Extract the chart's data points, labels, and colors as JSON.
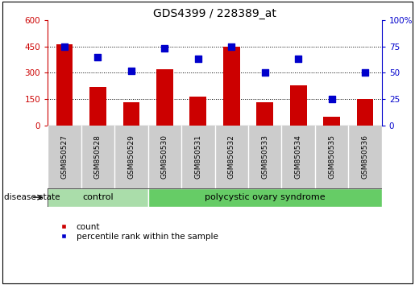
{
  "title": "GDS4399 / 228389_at",
  "samples": [
    "GSM850527",
    "GSM850528",
    "GSM850529",
    "GSM850530",
    "GSM850531",
    "GSM850532",
    "GSM850533",
    "GSM850534",
    "GSM850535",
    "GSM850536"
  ],
  "counts": [
    460,
    220,
    130,
    320,
    165,
    450,
    130,
    230,
    50,
    150
  ],
  "percentiles": [
    75,
    65,
    52,
    73,
    63,
    75,
    50,
    63,
    25,
    50
  ],
  "left_ylim": [
    0,
    600
  ],
  "right_ylim": [
    0,
    100
  ],
  "left_yticks": [
    0,
    150,
    300,
    450,
    600
  ],
  "right_yticks": [
    0,
    25,
    50,
    75,
    100
  ],
  "bar_color": "#cc0000",
  "dot_color": "#0000cc",
  "n_control": 3,
  "n_pcos": 7,
  "control_label": "control",
  "pcos_label": "polycystic ovary syndrome",
  "control_color": "#aaddaa",
  "pcos_color": "#66cc66",
  "group_bg_color": "#cccccc",
  "legend_count_label": "count",
  "legend_pct_label": "percentile rank within the sample",
  "disease_state_label": "disease state",
  "left_tick_color": "#cc0000",
  "right_tick_color": "#0000cc",
  "bar_width": 0.5,
  "dot_size": 40,
  "title_fontsize": 10,
  "tick_fontsize": 7.5,
  "label_fontsize": 8,
  "right_tick_labels": [
    "0",
    "25",
    "50",
    "75",
    "100%"
  ]
}
